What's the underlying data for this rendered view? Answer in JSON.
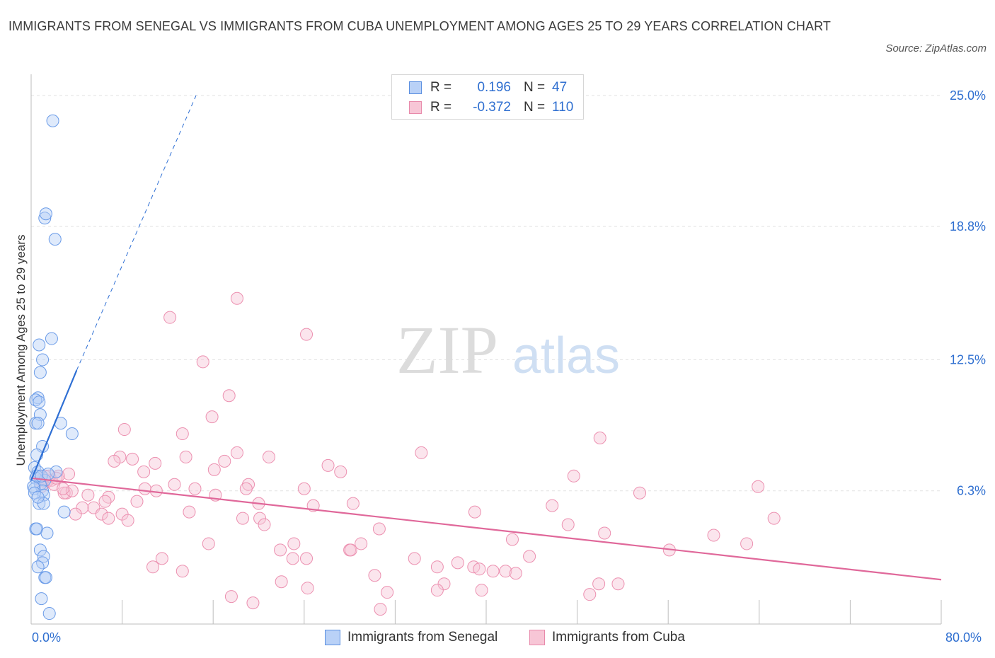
{
  "title": "IMMIGRANTS FROM SENEGAL VS IMMIGRANTS FROM CUBA UNEMPLOYMENT AMONG AGES 25 TO 29 YEARS CORRELATION CHART",
  "source": "Source: ZipAtlas.com",
  "watermark": {
    "zip": "ZIP",
    "atlas": "atlas"
  },
  "stats": [
    {
      "r_label": "R =",
      "r_value": "0.196",
      "n_label": "N =",
      "n_value": "47",
      "color": "#5b8fe0",
      "fill": "#b9d1f7"
    },
    {
      "r_label": "R =",
      "r_value": "-0.372",
      "n_label": "N =",
      "n_value": "110",
      "color": "#e88aab",
      "fill": "#f7c6d6"
    }
  ],
  "legend": [
    "Immigrants from Senegal",
    "Immigrants from Cuba"
  ],
  "axis_labels": {
    "x_min": "0.0%",
    "x_max": "80.0%"
  },
  "colors": {
    "senegal": "#6a9be8",
    "cuba": "#ec90b0",
    "senegal_line": "#2e6fd4",
    "cuba_line": "#e0689a",
    "tick_text": "#2f6fd0"
  },
  "chart_data": {
    "type": "scatter",
    "title": "IMMIGRANTS FROM SENEGAL VS IMMIGRANTS FROM CUBA UNEMPLOYMENT AMONG AGES 25 TO 29 YEARS CORRELATION CHART",
    "xlabel": "",
    "ylabel": "Unemployment Among Ages 25 to 29 years",
    "xlim": [
      0,
      80
    ],
    "ylim": [
      0,
      26
    ],
    "y_ticks": [
      6.3,
      12.5,
      18.8,
      25.0
    ],
    "y_tick_labels": [
      "6.3%",
      "12.5%",
      "18.8%",
      "25.0%"
    ],
    "x_tick_labels": [
      "0.0%",
      "80.0%"
    ],
    "series": [
      {
        "name": "Immigrants from Senegal",
        "trend": {
          "x": [
            0.0,
            4.0
          ],
          "y": [
            6.8,
            12.0
          ],
          "dashed_extension_to": [
            14.5,
            25.0
          ]
        },
        "points": [
          [
            1.9,
            23.8
          ],
          [
            1.2,
            19.2
          ],
          [
            1.3,
            19.4
          ],
          [
            2.1,
            18.2
          ],
          [
            1.8,
            13.5
          ],
          [
            0.7,
            13.2
          ],
          [
            1.0,
            12.5
          ],
          [
            0.8,
            11.9
          ],
          [
            0.6,
            10.7
          ],
          [
            0.4,
            10.6
          ],
          [
            0.7,
            10.5
          ],
          [
            0.8,
            9.9
          ],
          [
            0.4,
            9.5
          ],
          [
            0.6,
            9.5
          ],
          [
            2.6,
            9.5
          ],
          [
            3.6,
            9.0
          ],
          [
            1.0,
            8.4
          ],
          [
            0.5,
            8.0
          ],
          [
            0.3,
            7.4
          ],
          [
            0.6,
            7.2
          ],
          [
            2.2,
            7.2
          ],
          [
            0.4,
            6.9
          ],
          [
            1.2,
            6.8
          ],
          [
            0.8,
            6.6
          ],
          [
            0.3,
            6.4
          ],
          [
            1.0,
            6.3
          ],
          [
            1.1,
            6.1
          ],
          [
            0.7,
            5.7
          ],
          [
            1.1,
            5.7
          ],
          [
            2.9,
            5.3
          ],
          [
            0.4,
            4.5
          ],
          [
            0.5,
            4.5
          ],
          [
            1.4,
            4.3
          ],
          [
            0.8,
            3.5
          ],
          [
            1.1,
            3.2
          ],
          [
            1.0,
            2.9
          ],
          [
            0.6,
            2.7
          ],
          [
            1.2,
            2.2
          ],
          [
            1.3,
            2.2
          ],
          [
            0.9,
            1.2
          ],
          [
            1.6,
            0.5
          ],
          [
            0.2,
            6.5
          ],
          [
            0.5,
            7.0
          ],
          [
            0.9,
            7.0
          ],
          [
            0.3,
            6.2
          ],
          [
            1.5,
            7.1
          ],
          [
            0.6,
            6.0
          ]
        ]
      },
      {
        "name": "Immigrants from Cuba",
        "trend": {
          "x": [
            0.0,
            80.0
          ],
          "y": [
            6.9,
            2.1
          ]
        },
        "points": [
          [
            18.1,
            15.4
          ],
          [
            12.2,
            14.5
          ],
          [
            24.2,
            13.7
          ],
          [
            15.1,
            12.4
          ],
          [
            17.4,
            10.8
          ],
          [
            15.9,
            9.8
          ],
          [
            8.2,
            9.2
          ],
          [
            13.3,
            9.0
          ],
          [
            50.0,
            8.8
          ],
          [
            34.3,
            8.1
          ],
          [
            18.1,
            8.1
          ],
          [
            13.6,
            7.9
          ],
          [
            20.9,
            7.9
          ],
          [
            7.8,
            7.9
          ],
          [
            8.9,
            7.8
          ],
          [
            7.3,
            7.7
          ],
          [
            17.0,
            7.7
          ],
          [
            10.9,
            7.6
          ],
          [
            26.1,
            7.5
          ],
          [
            16.1,
            7.3
          ],
          [
            9.9,
            7.2
          ],
          [
            27.2,
            7.2
          ],
          [
            3.3,
            7.1
          ],
          [
            47.7,
            7.0
          ],
          [
            12.6,
            6.6
          ],
          [
            19.1,
            6.6
          ],
          [
            63.9,
            6.5
          ],
          [
            14.4,
            6.4
          ],
          [
            10.0,
            6.4
          ],
          [
            18.9,
            6.4
          ],
          [
            11.0,
            6.3
          ],
          [
            24.0,
            6.4
          ],
          [
            3.1,
            6.2
          ],
          [
            5.0,
            6.1
          ],
          [
            16.2,
            6.1
          ],
          [
            53.5,
            6.2
          ],
          [
            6.8,
            6.0
          ],
          [
            9.3,
            5.8
          ],
          [
            6.5,
            5.8
          ],
          [
            20.0,
            5.7
          ],
          [
            28.3,
            5.7
          ],
          [
            24.8,
            5.6
          ],
          [
            45.8,
            5.6
          ],
          [
            5.5,
            5.5
          ],
          [
            4.5,
            5.5
          ],
          [
            13.9,
            5.3
          ],
          [
            39.0,
            5.3
          ],
          [
            8.0,
            5.2
          ],
          [
            6.2,
            5.2
          ],
          [
            3.9,
            5.2
          ],
          [
            6.8,
            5.0
          ],
          [
            18.6,
            5.0
          ],
          [
            20.1,
            5.0
          ],
          [
            65.3,
            5.0
          ],
          [
            8.5,
            4.9
          ],
          [
            20.5,
            4.7
          ],
          [
            47.2,
            4.7
          ],
          [
            30.6,
            4.5
          ],
          [
            50.4,
            4.3
          ],
          [
            60.0,
            4.2
          ],
          [
            42.3,
            4.0
          ],
          [
            15.6,
            3.8
          ],
          [
            23.1,
            3.8
          ],
          [
            62.9,
            3.8
          ],
          [
            29.0,
            3.8
          ],
          [
            21.9,
            3.5
          ],
          [
            28.0,
            3.5
          ],
          [
            28.1,
            3.5
          ],
          [
            56.1,
            3.5
          ],
          [
            11.5,
            3.1
          ],
          [
            23.0,
            3.1
          ],
          [
            24.2,
            3.1
          ],
          [
            33.7,
            3.1
          ],
          [
            43.8,
            3.2
          ],
          [
            37.5,
            2.9
          ],
          [
            10.7,
            2.7
          ],
          [
            35.7,
            2.7
          ],
          [
            38.9,
            2.7
          ],
          [
            39.4,
            2.6
          ],
          [
            13.3,
            2.5
          ],
          [
            40.6,
            2.5
          ],
          [
            41.7,
            2.5
          ],
          [
            42.6,
            2.4
          ],
          [
            30.2,
            2.3
          ],
          [
            22.0,
            2.0
          ],
          [
            36.3,
            1.9
          ],
          [
            49.9,
            1.9
          ],
          [
            51.6,
            1.9
          ],
          [
            35.7,
            1.6
          ],
          [
            39.6,
            1.6
          ],
          [
            24.3,
            1.7
          ],
          [
            31.3,
            1.5
          ],
          [
            49.1,
            1.4
          ],
          [
            17.6,
            1.3
          ],
          [
            19.5,
            1.0
          ],
          [
            30.7,
            0.7
          ],
          [
            0.8,
            6.8
          ],
          [
            1.1,
            6.9
          ],
          [
            1.5,
            6.8
          ],
          [
            1.3,
            6.7
          ],
          [
            1.8,
            6.8
          ],
          [
            2.0,
            6.6
          ],
          [
            2.4,
            7.0
          ],
          [
            2.9,
            6.2
          ],
          [
            1.2,
            7.0
          ],
          [
            0.9,
            6.5
          ],
          [
            1.6,
            7.0
          ],
          [
            2.2,
            6.9
          ],
          [
            3.6,
            6.3
          ],
          [
            2.8,
            6.4
          ]
        ]
      }
    ]
  }
}
